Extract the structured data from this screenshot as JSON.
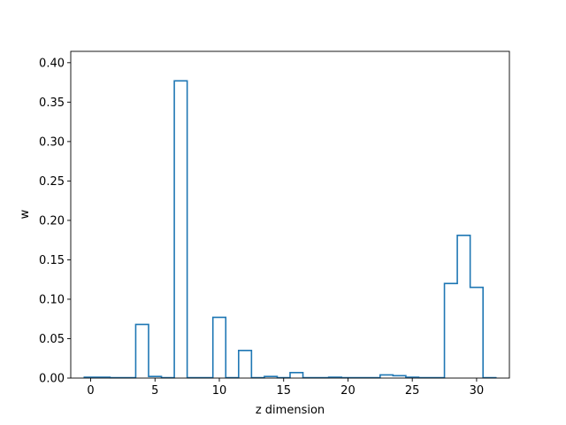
{
  "chart_data": {
    "type": "histogram-step",
    "xlabel": "z dimension",
    "ylabel": "w",
    "xlim": [
      -1.55,
      32.55
    ],
    "ylim": [
      0,
      0.4144
    ],
    "x_ticks": [
      0,
      5,
      10,
      15,
      20,
      25,
      30
    ],
    "y_ticks": [
      0.0,
      0.05,
      0.1,
      0.15,
      0.2,
      0.25,
      0.3,
      0.35,
      0.4
    ],
    "y_tick_labels": [
      "0.00",
      "0.05",
      "0.10",
      "0.15",
      "0.20",
      "0.25",
      "0.30",
      "0.35",
      "0.40"
    ],
    "grid": false,
    "series": [
      {
        "color": "#1f77b4",
        "x": [
          0,
          1,
          2,
          3,
          4,
          5,
          6,
          7,
          8,
          9,
          10,
          11,
          12,
          13,
          14,
          15,
          16,
          17,
          18,
          19,
          20,
          21,
          22,
          23,
          24,
          25,
          26,
          27,
          28,
          29,
          30,
          31
        ],
        "values": [
          0.001,
          0.001,
          0.0005,
          0.0005,
          0.068,
          0.002,
          0.0005,
          0.377,
          0.0005,
          0.0005,
          0.077,
          0.0005,
          0.035,
          0.0005,
          0.002,
          0.0005,
          0.007,
          0.0005,
          0.0005,
          0.001,
          0.0005,
          0.0005,
          0.0005,
          0.004,
          0.003,
          0.001,
          0.0005,
          0.0005,
          0.12,
          0.181,
          0.115,
          0.0005
        ]
      }
    ]
  }
}
